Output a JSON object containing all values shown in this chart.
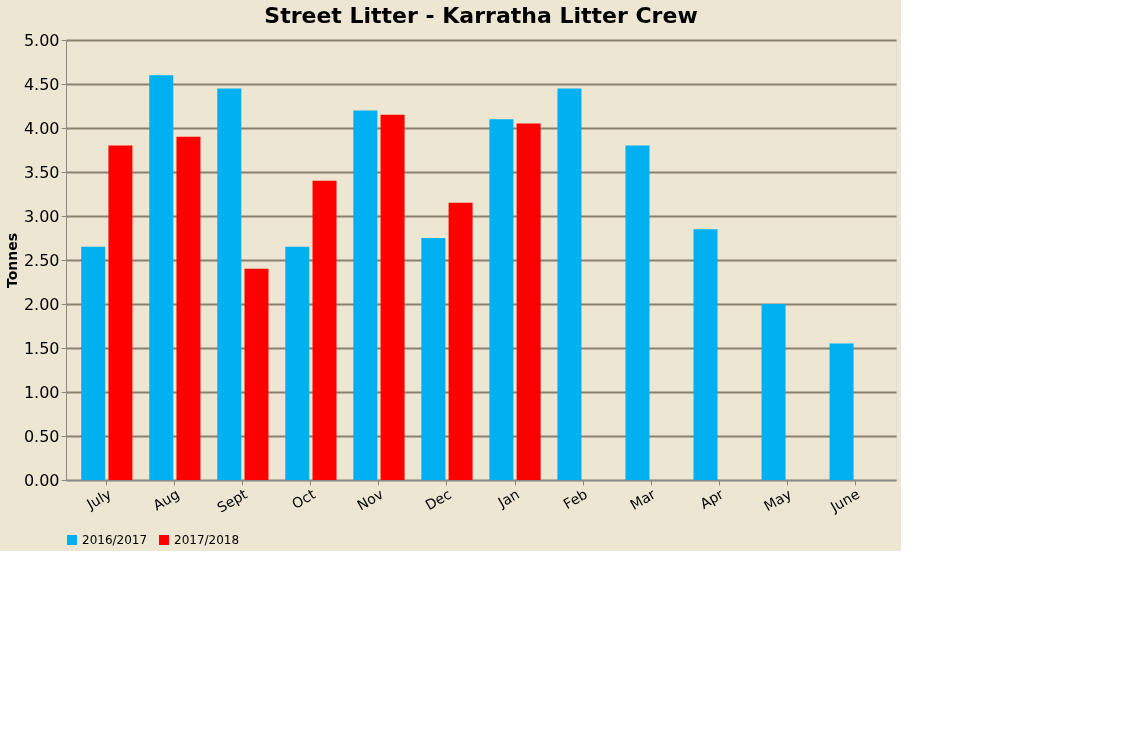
{
  "chart_data": {
    "type": "bar",
    "title": "Street Litter - Karratha Litter Crew",
    "ylabel": "Tonnes",
    "categories": [
      "July",
      "Aug",
      "Sept",
      "Oct",
      "Nov",
      "Dec",
      "Jan",
      "Feb",
      "Mar",
      "Apr",
      "May",
      "June"
    ],
    "series": [
      {
        "name": "2016/2017",
        "color": "#00b0f0",
        "values": [
          2.65,
          4.6,
          4.45,
          2.65,
          4.2,
          2.75,
          4.1,
          4.45,
          3.8,
          2.85,
          2.0,
          1.55
        ]
      },
      {
        "name": "2017/2018",
        "color": "#ff0000",
        "values": [
          3.8,
          3.9,
          2.4,
          3.4,
          4.15,
          3.15,
          4.05,
          null,
          null,
          null,
          null,
          null
        ]
      }
    ],
    "ylim": [
      0,
      5
    ],
    "yticks": [
      {
        "value": 0,
        "label": "0.00"
      },
      {
        "value": 0.5,
        "label": "0.50"
      },
      {
        "value": 1,
        "label": "1.00"
      },
      {
        "value": 1.5,
        "label": "1.50"
      },
      {
        "value": 2,
        "label": "2.00"
      },
      {
        "value": 2.5,
        "label": "2.50"
      },
      {
        "value": 3,
        "label": "3.00"
      },
      {
        "value": 3.5,
        "label": "3.50"
      },
      {
        "value": 4,
        "label": "4.00"
      },
      {
        "value": 4.5,
        "label": "4.50"
      },
      {
        "value": 5,
        "label": "5.00"
      }
    ],
    "grid": "y",
    "legend": "bottom"
  }
}
